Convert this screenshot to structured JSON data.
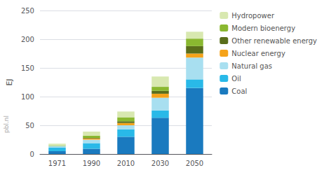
{
  "chart_data": {
    "type": "bar",
    "stacked": true,
    "categories": [
      "1971",
      "1990",
      "2010",
      "2030",
      "2050"
    ],
    "series": [
      {
        "name": "Coal",
        "color": "#1a7abf",
        "values": [
          5,
          9,
          30,
          63,
          115
        ]
      },
      {
        "name": "Oil",
        "color": "#29b9e8",
        "values": [
          6,
          10,
          13,
          13,
          15
        ]
      },
      {
        "name": "Natural gas",
        "color": "#a8dff0",
        "values": [
          3,
          6,
          7,
          22,
          38
        ]
      },
      {
        "name": "Nuclear energy",
        "color": "#f5a31a",
        "values": [
          0,
          2,
          4,
          7,
          7
        ]
      },
      {
        "name": "Other renewable energy",
        "color": "#5a6e1a",
        "values": [
          0,
          1,
          3,
          5,
          13
        ]
      },
      {
        "name": "Modern bioenergy",
        "color": "#8ab830",
        "values": [
          1,
          4,
          7,
          7,
          13
        ]
      },
      {
        "name": "Hydropower",
        "color": "#d8e8b0",
        "values": [
          3,
          7,
          10,
          18,
          12
        ]
      }
    ],
    "ylabel": "EJ",
    "ylim": [
      0,
      250
    ],
    "yticks": [
      0,
      50,
      100,
      150,
      200,
      250
    ],
    "grid": true,
    "legend": "right",
    "annotations": [
      "pbl.nl"
    ]
  }
}
